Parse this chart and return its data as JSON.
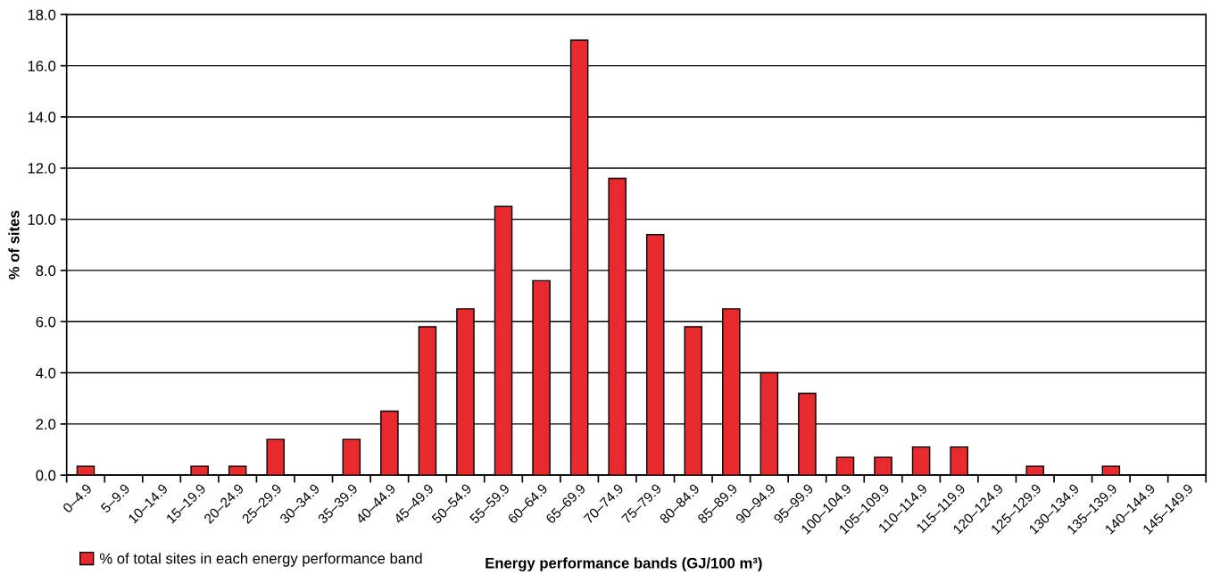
{
  "chart_data": {
    "type": "bar",
    "xlabel": "Energy performance bands (GJ/100 m³)",
    "ylabel": "% of sites",
    "categories": [
      "0–4.9",
      "5–9.9",
      "10–14.9",
      "15–19.9",
      "20–24.9",
      "25–29.9",
      "30–34.9",
      "35–39.9",
      "40–44.9",
      "45–49.9",
      "50–54.9",
      "55–59.9",
      "60–64.9",
      "65–69.9",
      "70–74.9",
      "75–79.9",
      "80–84.9",
      "85–89.9",
      "90–94.9",
      "95–99.9",
      "100–104.9",
      "105–109.9",
      "110–114.9",
      "115–119.9",
      "120–124.9",
      "125–129.9",
      "130–134.9",
      "135–139.9",
      "140–144.9",
      "145–149.9"
    ],
    "series": [
      {
        "name": "% of total sites in each energy performance band",
        "color": "#e8292e",
        "values": [
          0.35,
          0,
          0,
          0.35,
          0.35,
          1.4,
          0,
          1.4,
          2.5,
          5.8,
          6.5,
          10.5,
          7.6,
          17.0,
          11.6,
          9.4,
          5.8,
          6.5,
          4.0,
          3.2,
          0.7,
          0.7,
          1.1,
          1.1,
          0,
          0.35,
          0,
          0.35,
          0,
          0
        ]
      }
    ],
    "ylim": [
      0,
      18
    ],
    "yticks": [
      {
        "value": 0,
        "label": "0.0"
      },
      {
        "value": 2,
        "label": "2.0"
      },
      {
        "value": 4,
        "label": "4.0"
      },
      {
        "value": 6,
        "label": "6.0"
      },
      {
        "value": 8,
        "label": "8.0"
      },
      {
        "value": 10,
        "label": "10.0"
      },
      {
        "value": 12,
        "label": "12.0"
      },
      {
        "value": 14,
        "label": "14.0"
      },
      {
        "value": 16,
        "label": "16.0"
      },
      {
        "value": 18,
        "label": "18.0"
      }
    ],
    "grid": "y",
    "legend": "bottom left"
  }
}
